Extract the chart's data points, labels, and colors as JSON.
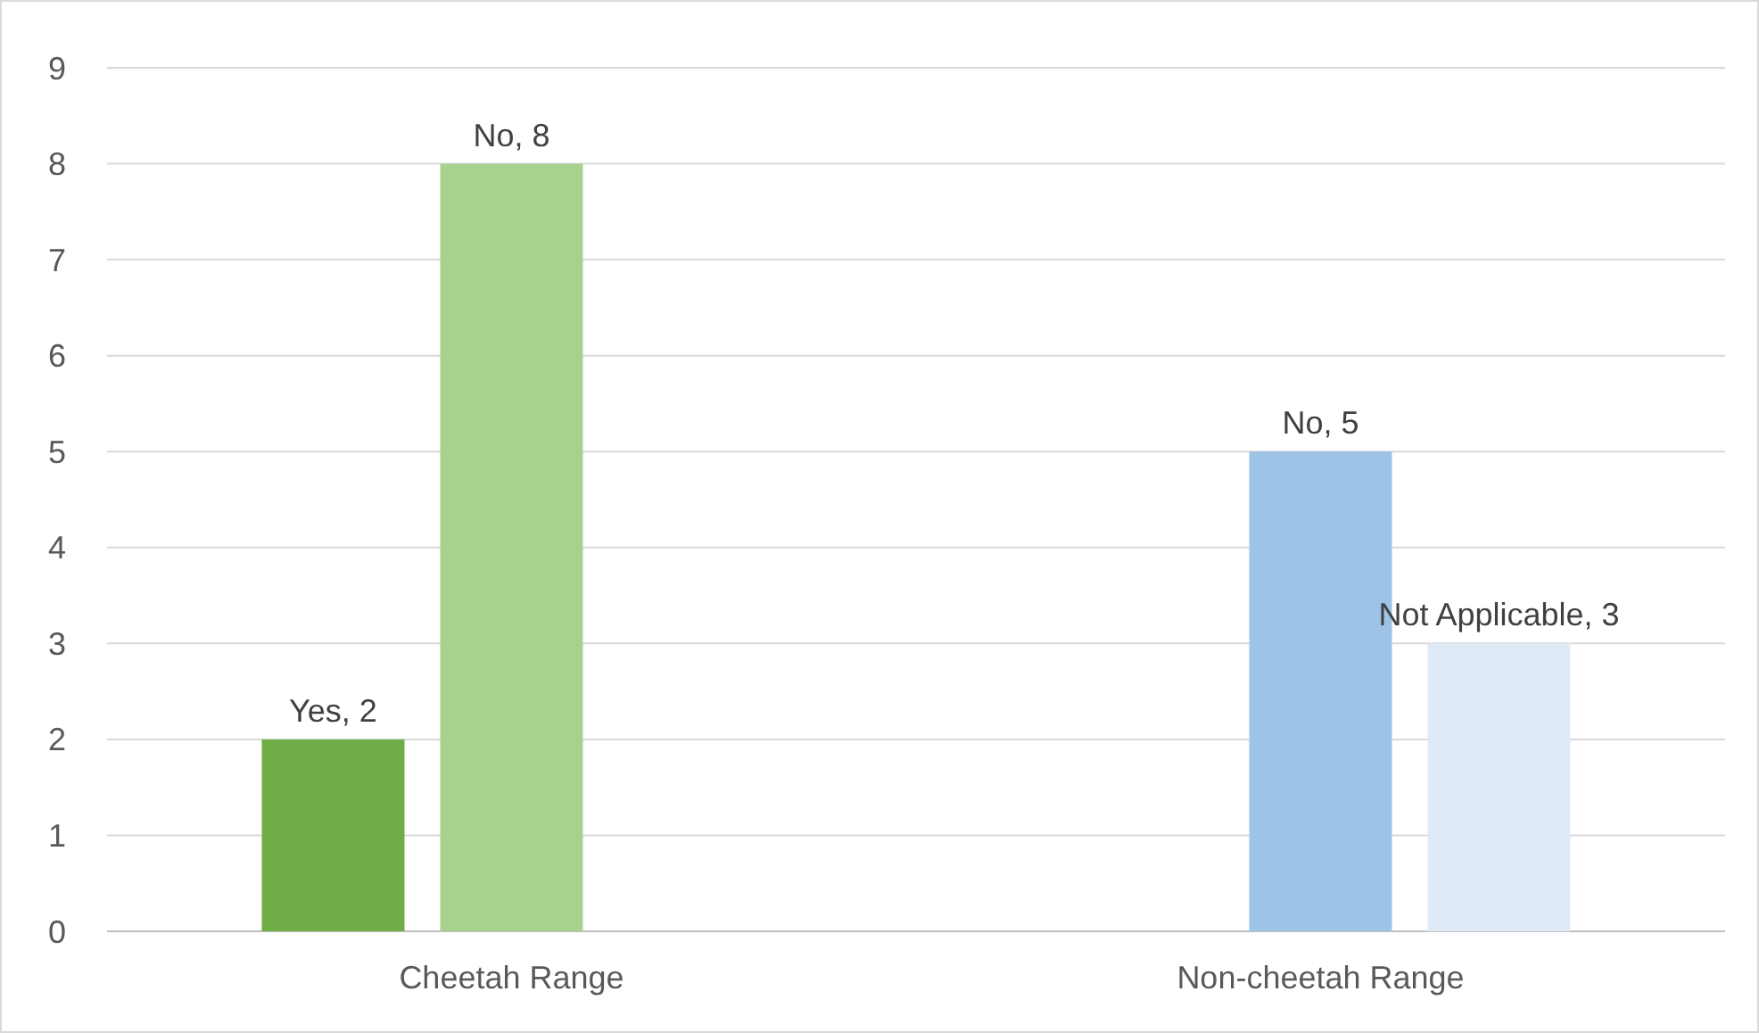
{
  "chart_data": {
    "type": "bar",
    "categories": [
      "Cheetah Range",
      "Non-cheetah Range"
    ],
    "series": [
      {
        "color": "#70ad47",
        "values": [
          2,
          null
        ],
        "value_labels": [
          "Yes, 2",
          null
        ]
      },
      {
        "colors": [
          "#a9d18e",
          "#9dc3e6"
        ],
        "values": [
          8,
          5
        ],
        "value_labels": [
          "No, 8",
          "No, 5"
        ]
      },
      {
        "color": "#deebf7",
        "values": [
          null,
          3
        ],
        "value_labels": [
          null,
          "Not Applicable, 3"
        ]
      }
    ],
    "ylim": [
      0,
      9
    ],
    "yticks": [
      0,
      1,
      2,
      3,
      4,
      5,
      6,
      7,
      8,
      9
    ],
    "grid": "y"
  }
}
